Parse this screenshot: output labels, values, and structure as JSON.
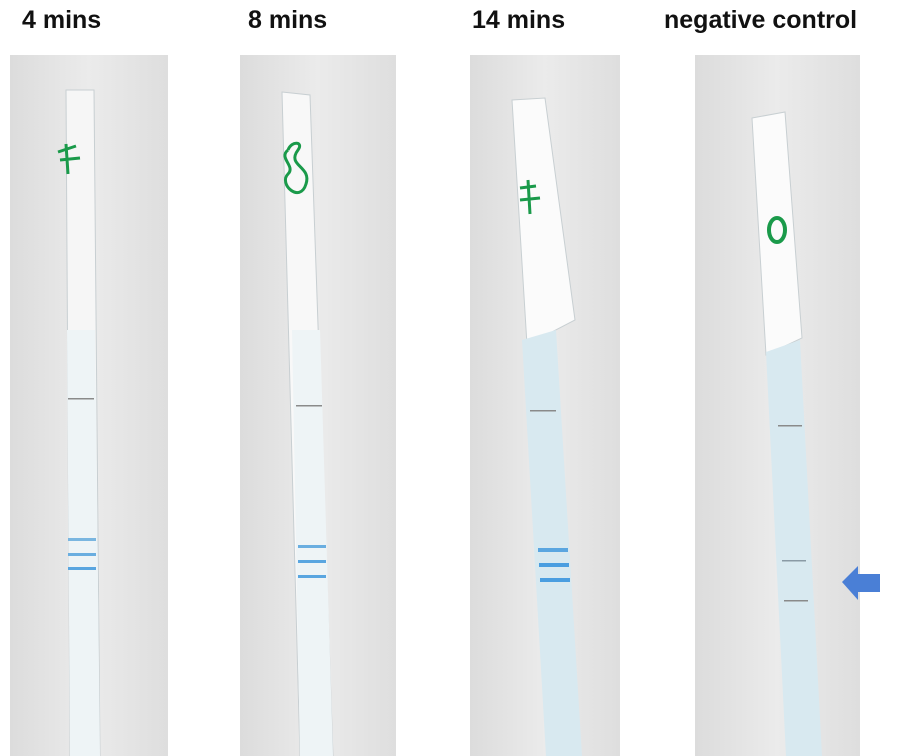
{
  "panels": [
    {
      "label": "4 mins"
    },
    {
      "label": "8 mins"
    },
    {
      "label": "14 mins"
    },
    {
      "label": "negative control"
    }
  ]
}
